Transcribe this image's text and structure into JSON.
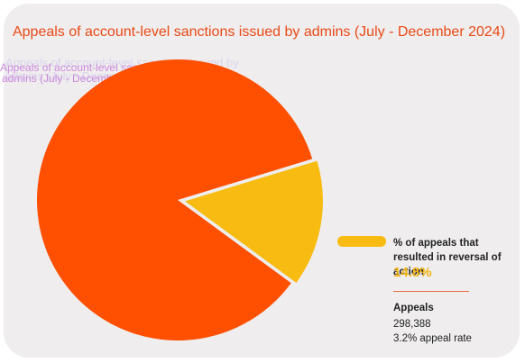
{
  "chart_data": {
    "type": "pie",
    "title": "Appeals of account-level sanctions issued by admins (July - December 2024)",
    "slices": [
      {
        "label": "",
        "value": 85.2,
        "color": "#fe5000"
      },
      {
        "label": "% of appeals that resulted in reversal of action",
        "value": 14.8,
        "color": "#f7bb11"
      }
    ],
    "legend": {
      "label": "% of appeals that resulted in reversal of action",
      "value": "14.8%",
      "placement": "right"
    },
    "summary": {
      "heading": "Appeals",
      "count": "298,388",
      "rate": "3.2% appeal rate"
    },
    "ghost_text": [
      "Appeals of account-level sanctions issued by",
      "admins (July - December 2024)"
    ]
  }
}
